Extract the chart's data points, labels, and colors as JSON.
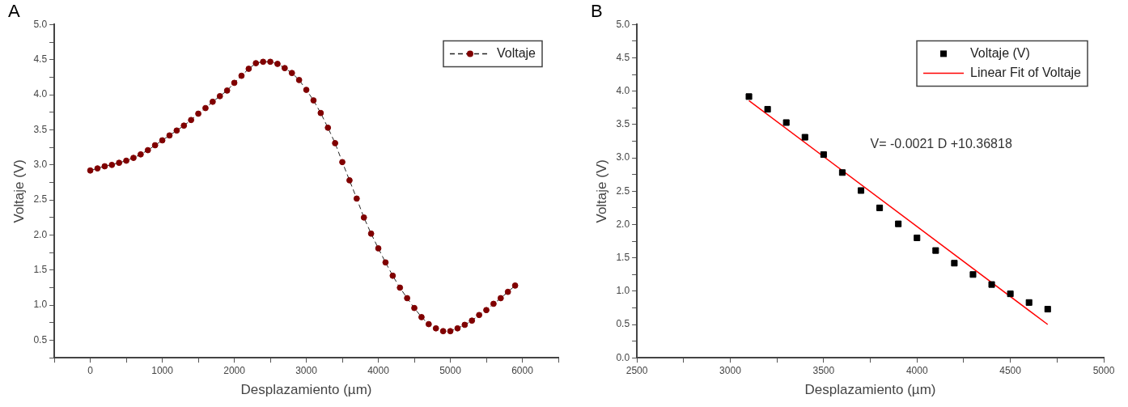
{
  "chart_data": [
    {
      "type": "scatter",
      "title": "A",
      "xlabel": "Desplazamiento (µm)",
      "ylabel": "Voltaje (V)",
      "xlim": [
        -500,
        6500
      ],
      "xticks": [
        {
          "value": -500,
          "label": null
        },
        0,
        {
          "value": 500,
          "label": null
        },
        1000,
        {
          "value": 1500,
          "label": null
        },
        2000,
        {
          "value": 2500,
          "label": null
        },
        3000,
        {
          "value": 3500,
          "label": null
        },
        4000,
        {
          "value": 4500,
          "label": null
        },
        5000,
        {
          "value": 5500,
          "label": null
        },
        6000,
        {
          "value": 6500,
          "label": null
        }
      ],
      "ylim": [
        0.25,
        5.0
      ],
      "yticks": [
        {
          "value": 0.25,
          "label": null
        },
        0.5,
        {
          "value": 0.75,
          "label": null
        },
        {
          "value": 1,
          "label": "1.0"
        },
        {
          "value": 1.25,
          "label": null
        },
        1.5,
        {
          "value": 1.75,
          "label": null
        },
        {
          "value": 2,
          "label": "2.0"
        },
        {
          "value": 2.25,
          "label": null
        },
        2.5,
        {
          "value": 2.75,
          "label": null
        },
        {
          "value": 3,
          "label": "3.0"
        },
        {
          "value": 3.25,
          "label": null
        },
        3.5,
        {
          "value": 3.75,
          "label": null
        },
        {
          "value": 4,
          "label": "4.0"
        },
        {
          "value": 4.25,
          "label": null
        },
        4.5,
        {
          "value": 4.75,
          "label": null
        },
        {
          "value": 5,
          "label": "5.0"
        }
      ],
      "grid": false,
      "legend": "top right",
      "series": [
        {
          "name": "Voltaje",
          "type": "line",
          "color": "#800000",
          "marker": "circle",
          "line_style": "dashed",
          "x": [
            0,
            100,
            200,
            300,
            400,
            500,
            600,
            700,
            800,
            900,
            1000,
            1100,
            1200,
            1300,
            1400,
            1500,
            1600,
            1700,
            1800,
            1900,
            2000,
            2100,
            2200,
            2300,
            2400,
            2500,
            2600,
            2700,
            2800,
            2900,
            3000,
            3100,
            3200,
            3300,
            3400,
            3500,
            3600,
            3700,
            3800,
            3900,
            4000,
            4100,
            4200,
            4300,
            4400,
            4500,
            4600,
            4700,
            4800,
            4900,
            5000,
            5100,
            5200,
            5300,
            5400,
            5500,
            5600,
            5700,
            5800,
            5900
          ],
          "values": [
            2.92,
            2.95,
            2.98,
            3.0,
            3.03,
            3.06,
            3.1,
            3.15,
            3.21,
            3.28,
            3.35,
            3.42,
            3.49,
            3.56,
            3.64,
            3.73,
            3.81,
            3.9,
            3.98,
            4.06,
            4.17,
            4.27,
            4.37,
            4.45,
            4.47,
            4.47,
            4.44,
            4.38,
            4.31,
            4.21,
            4.07,
            3.92,
            3.74,
            3.53,
            3.31,
            3.04,
            2.78,
            2.52,
            2.25,
            2.02,
            1.81,
            1.61,
            1.42,
            1.25,
            1.1,
            0.96,
            0.83,
            0.73,
            0.67,
            0.63,
            0.63,
            0.67,
            0.72,
            0.78,
            0.86,
            0.93,
            1.02,
            1.1,
            1.19,
            1.28
          ]
        }
      ]
    },
    {
      "type": "scatter",
      "title": "B",
      "xlabel": "Desplazamiento (µm)",
      "ylabel": "Voltaje (V)",
      "xlim": [
        2500,
        5000
      ],
      "xticks": [
        2500,
        {
          "value": 2750,
          "label": null
        },
        3000,
        {
          "value": 3250,
          "label": null
        },
        3500,
        {
          "value": 3750,
          "label": null
        },
        4000,
        {
          "value": 4250,
          "label": null
        },
        4500,
        {
          "value": 4750,
          "label": null
        },
        5000
      ],
      "ylim": [
        0.0,
        5.0
      ],
      "yticks": [
        {
          "value": 0,
          "label": "0.0"
        },
        {
          "value": 0.25,
          "label": null
        },
        0.5,
        {
          "value": 0.75,
          "label": null
        },
        {
          "value": 1,
          "label": "1.0"
        },
        {
          "value": 1.25,
          "label": null
        },
        1.5,
        {
          "value": 1.75,
          "label": null
        },
        {
          "value": 2,
          "label": "2.0"
        },
        {
          "value": 2.25,
          "label": null
        },
        2.5,
        {
          "value": 2.75,
          "label": null
        },
        {
          "value": 3,
          "label": "3.0"
        },
        {
          "value": 3.25,
          "label": null
        },
        3.5,
        {
          "value": 3.75,
          "label": null
        },
        {
          "value": 4,
          "label": "4.0"
        },
        {
          "value": 4.25,
          "label": null
        },
        4.5,
        {
          "value": 4.75,
          "label": null
        },
        {
          "value": 5,
          "label": "5.0"
        }
      ],
      "grid": false,
      "legend": "top right",
      "annotations": [
        "V= -0.0021 D +10.36818"
      ],
      "series": [
        {
          "name": "Voltaje (V)",
          "type": "scatter",
          "color": "#000000",
          "marker": "square",
          "x": [
            3100,
            3200,
            3300,
            3400,
            3500,
            3600,
            3700,
            3800,
            3900,
            4000,
            4100,
            4200,
            4300,
            4400,
            4500,
            4600,
            4700
          ],
          "values": [
            3.92,
            3.73,
            3.53,
            3.31,
            3.05,
            2.78,
            2.51,
            2.25,
            2.01,
            1.8,
            1.61,
            1.42,
            1.25,
            1.1,
            0.96,
            0.83,
            0.73
          ]
        },
        {
          "name": "Linear Fit of Voltaje",
          "type": "line",
          "color": "#ff0000",
          "marker": "none",
          "line_style": "solid",
          "x": [
            3100,
            4700
          ],
          "values": [
            3.86,
            0.5
          ]
        }
      ]
    }
  ]
}
